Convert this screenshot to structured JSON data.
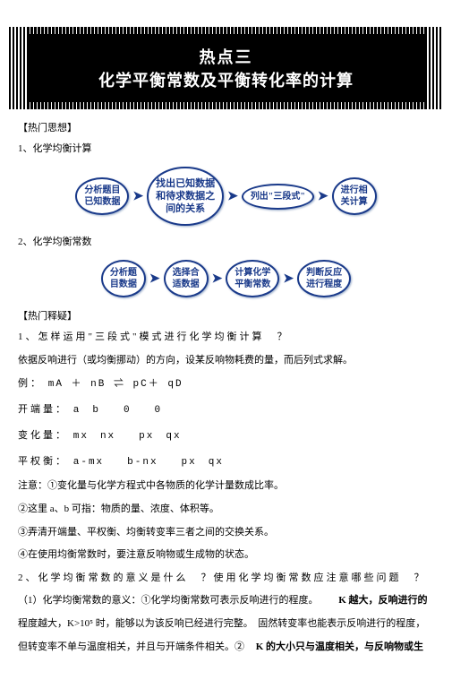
{
  "banner": {
    "title": "热点三",
    "subtitle": "化学平衡常数及平衡转化率的计算"
  },
  "sections": {
    "s1_label": "【热门思想】",
    "s1_item1": "1、化学均衡计算",
    "s1_item2": "2、化学均衡常数",
    "s2_label": "【热门释疑】",
    "s2_q1": "1、怎样运用\"三段式\"模式进行化学均衡计算　？",
    "s2_q1_a": "依据反响进行（或均衡挪动）的方向，设某反响物耗费的量，而后列式求解。",
    "example_label": "例：",
    "equation": "mA ＋ nB ⇌ pC＋ qD",
    "row1_label": "开端量：",
    "row1_vals": "a　b　　0　　0",
    "row2_label": "变化量：",
    "row2_vals": "mx　nx　　px　qx",
    "row3_label": "平权衡：",
    "row3_vals": "a-mx　　b-nx　　px　qx",
    "note_label": "注意：",
    "note1": "①变化量与化学方程式中各物质的化学计量数成比率。",
    "note2": "②这里 a、b 可指：物质的量、浓度、体积等。",
    "note3": "③弄清开端量、平权衡、均衡转变率三者之间的交换关系。",
    "note4": "④在使用均衡常数时，要注意反响物或生成物的状态。",
    "s2_q2": "2、化学均衡常数的意义是什么　？使用化学均衡常数应注意哪些问题　？",
    "s2_q2_p1a": "（1）化学均衡常数的意义：①化学均衡常数可表示反响进行的程度。",
    "s2_q2_p1b": "K 越大，反响进行的",
    "s2_q2_p2": "程度越大，K>10⁵ 时，能够以为该反响已经进行完整。　固然转变率也能表示反响进行的程度，",
    "s2_q2_p3a": "但转变率不单与温度相关，并且与开端条件相关。②",
    "s2_q2_p3b": "K 的大小只与温度相关，与反响物或生"
  },
  "flow1": {
    "b1": "分析题目\n已知数据",
    "b2": "找出已知数据\n和待求数据之\n间的关系",
    "b3": "列出\"三段式\"",
    "b4": "进行相\n关计算"
  },
  "flow2": {
    "b1": "分析题\n目数据",
    "b2": "选择合\n适数据",
    "b3": "计算化学\n平衡常数",
    "b4": "判断反应\n进行程度"
  },
  "colors": {
    "banner_bg": "#000000",
    "banner_fg": "#ffffff",
    "bubble_border": "#1a3a8a",
    "bubble_text": "#1a3a8a"
  }
}
